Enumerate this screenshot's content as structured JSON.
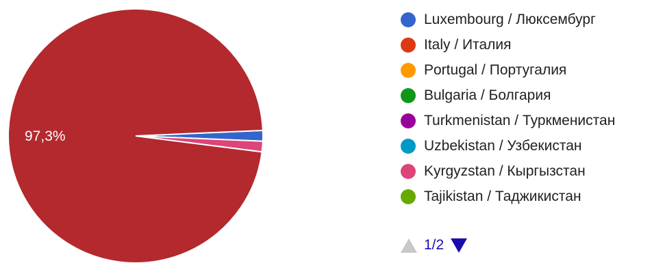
{
  "chart_data": {
    "type": "pie",
    "slices": [
      {
        "label": "Luxembourg / Люксембург",
        "value": 1.35,
        "color": "#3366cc"
      },
      {
        "label": "Kyrgyzstan / Кыргызстан",
        "value": 1.35,
        "color": "#dd4477"
      },
      {
        "label": "Italy / Италия",
        "value": 97.3,
        "color": "#b3292e"
      }
    ],
    "data_labels": [
      {
        "slice": "Italy / Италия",
        "text": "97,3%"
      }
    ],
    "legend": [
      {
        "label": "Luxembourg / Люксембург",
        "color": "#3366cc"
      },
      {
        "label": "Italy / Италия",
        "color": "#dc3912"
      },
      {
        "label": "Portugal / Португалия",
        "color": "#ff9900"
      },
      {
        "label": "Bulgaria / Болгария",
        "color": "#109618"
      },
      {
        "label": "Turkmenistan / Туркменистан",
        "color": "#990099"
      },
      {
        "label": "Uzbekistan / Узбекистан",
        "color": "#0099c6"
      },
      {
        "label": "Kyrgyzstan / Кыргызстан",
        "color": "#dd4477"
      },
      {
        "label": "Tajikistan / Таджикистан",
        "color": "#66aa00"
      }
    ],
    "legend_position": "right"
  },
  "pager": {
    "text": "1/2"
  }
}
